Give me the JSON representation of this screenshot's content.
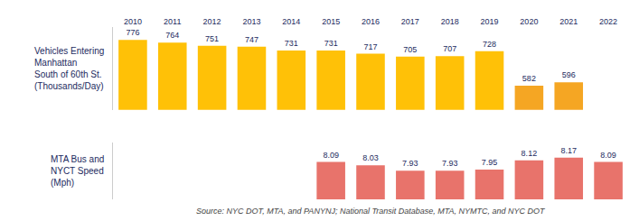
{
  "chart_data": [
    {
      "type": "bar",
      "ylabel": "Vehicles Entering\nManhattan\nSouth of 60th St.\n(Thousands/Day)",
      "categories": [
        2010,
        2011,
        2012,
        2013,
        2014,
        2015,
        2016,
        2017,
        2018,
        2019,
        2020,
        2021,
        2022
      ],
      "values": [
        776,
        764,
        751,
        747,
        731,
        731,
        717,
        705,
        707,
        728,
        582,
        596,
        null
      ],
      "colors": [
        "#FFC107",
        "#FFC107",
        "#FFC107",
        "#FFC107",
        "#FFC107",
        "#FFC107",
        "#FFC107",
        "#FFC107",
        "#FFC107",
        "#FFC107",
        "#F5A623",
        "#F5A623",
        "#F5A623"
      ],
      "ylim": [
        480,
        830
      ],
      "data_labels": true,
      "tick_labels": "x",
      "grid": false
    },
    {
      "type": "bar",
      "ylabel": "MTA Bus and\nNYCT Speed\n(Mph)",
      "categories": [
        2010,
        2011,
        2012,
        2013,
        2014,
        2015,
        2016,
        2017,
        2018,
        2019,
        2020,
        2021,
        2022
      ],
      "values": [
        null,
        null,
        null,
        null,
        null,
        8.09,
        8.03,
        7.93,
        7.93,
        7.95,
        8.12,
        8.17,
        8.09
      ],
      "color": "#E8736B",
      "ylim": [
        7.4,
        8.45
      ],
      "data_labels": true,
      "tick_labels": false,
      "grid": false,
      "annotations": [
        "Source: NYC DOT, MTA, and PANYNJ; National Transit Database, MTA, NYMTC, and NYC DOT"
      ]
    }
  ]
}
